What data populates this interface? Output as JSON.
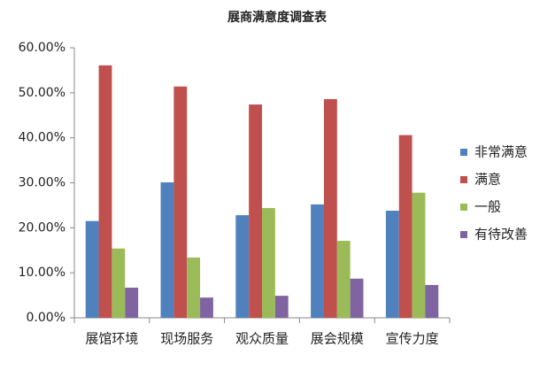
{
  "chart_data": {
    "type": "bar",
    "title": "展商满意度调查表",
    "categories": [
      "展馆环境",
      "现场服务",
      "观众质量",
      "展会规模",
      "宣传力度"
    ],
    "series": [
      {
        "name": "非常满意",
        "color": "#4f81bd",
        "values": [
          21.5,
          30.1,
          22.8,
          25.2,
          23.8
        ]
      },
      {
        "name": "满意",
        "color": "#c0504d",
        "values": [
          56.1,
          51.4,
          47.4,
          48.6,
          40.6
        ]
      },
      {
        "name": "一般",
        "color": "#9bbb59",
        "values": [
          15.4,
          13.4,
          24.4,
          17.1,
          27.8
        ]
      },
      {
        "name": "有待改善",
        "color": "#8064a2",
        "values": [
          6.7,
          4.5,
          4.9,
          8.7,
          7.3
        ]
      }
    ],
    "ylim": [
      0,
      60
    ],
    "yticks": [
      {
        "value": 0,
        "label": "0.00%"
      },
      {
        "value": 10,
        "label": "10.00%"
      },
      {
        "value": 20,
        "label": "20.00%"
      },
      {
        "value": 30,
        "label": "30.00%"
      },
      {
        "value": 40,
        "label": "40.00%"
      },
      {
        "value": 50,
        "label": "50.00%"
      },
      {
        "value": 60,
        "label": "60.00%"
      }
    ],
    "grid": false,
    "legend": "right"
  }
}
